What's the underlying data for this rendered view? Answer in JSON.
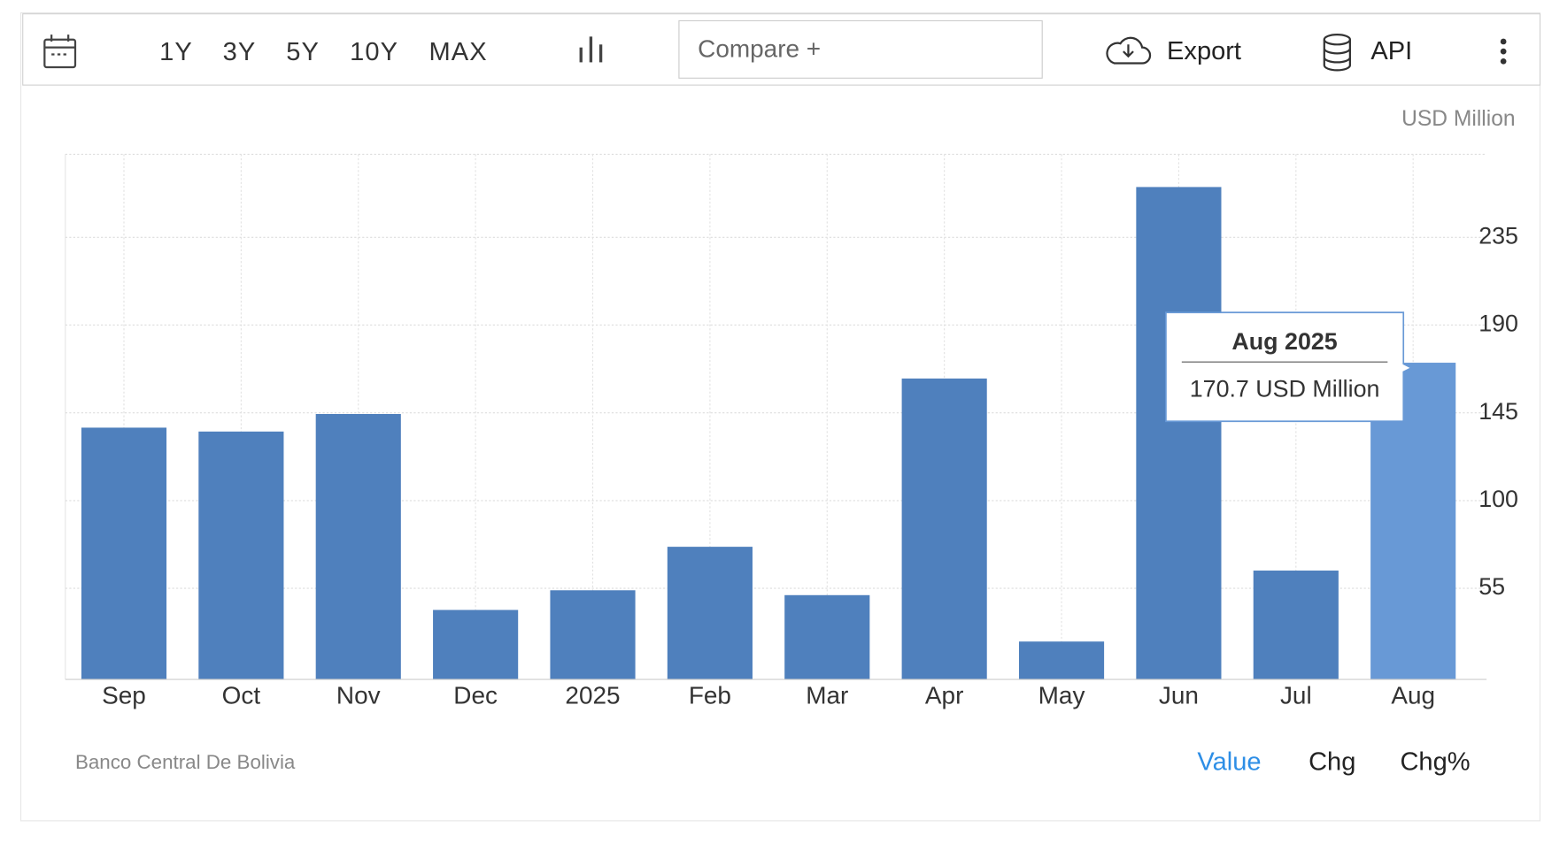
{
  "toolbar": {
    "ranges": [
      "1Y",
      "3Y",
      "5Y",
      "10Y",
      "MAX"
    ],
    "compare": "Compare +",
    "export": "Export",
    "api": "API"
  },
  "chart_data": {
    "type": "bar",
    "unit": "USD Million",
    "categories": [
      "Sep",
      "Oct",
      "Nov",
      "Dec",
      "2025",
      "Feb",
      "Mar",
      "Apr",
      "May",
      "Jun",
      "Jul",
      "Aug"
    ],
    "values": [
      137.4,
      135.4,
      144.4,
      43.9,
      54,
      76.3,
      51.5,
      162.6,
      27.7,
      260.8,
      64.1,
      170.7
    ],
    "colors": [
      "#4f80bd",
      "#4f80bd",
      "#4f80bd",
      "#4f80bd",
      "#4f80bd",
      "#4f80bd",
      "#4f80bd",
      "#4f80bd",
      "#4f80bd",
      "#4f80bd",
      "#4f80bd",
      "#6899d6"
    ],
    "ylim": [
      8.3,
      277.6
    ],
    "yticks": [
      55,
      100,
      145,
      190,
      235
    ],
    "grid": true,
    "tooltip": {
      "title": "Aug 2025",
      "text": "170.7 USD Million"
    },
    "source": "Banco Central De Bolivia"
  },
  "footer": {
    "tabs": [
      "Value",
      "Chg",
      "Chg%"
    ]
  }
}
